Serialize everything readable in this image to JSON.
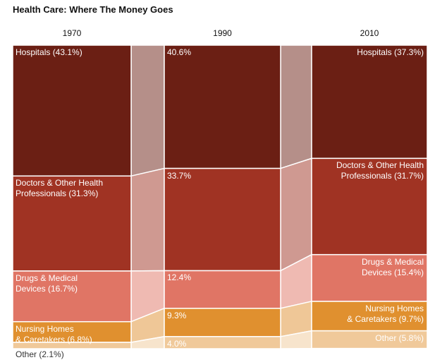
{
  "chart_data": {
    "type": "stacked_bar",
    "title": "Health Care: Where The Money Goes",
    "categories": [
      "1970",
      "1990",
      "2010"
    ],
    "ylim": [
      0,
      100
    ],
    "series": [
      {
        "name": "Hospitals",
        "color": "#6b1f14",
        "values": [
          43.1,
          40.6,
          37.3
        ],
        "value_labels": [
          "Hospitals (43.1%)",
          "40.6%",
          "Hospitals (37.3%)"
        ]
      },
      {
        "name": "Doctors & Other Health Professionals",
        "color": "#a03323",
        "values": [
          31.3,
          33.7,
          31.7
        ],
        "value_labels": [
          "Doctors & Other Health\nProfessionals (31.3%)",
          "33.7%",
          "Doctors & Other Health\nProfessionals (31.7%)"
        ]
      },
      {
        "name": "Drugs & Medical Devices",
        "color": "#e07565",
        "values": [
          16.7,
          12.4,
          15.4
        ],
        "value_labels": [
          "Drugs & Medical\nDevices (16.7%)",
          "12.4%",
          "Drugs & Medical\nDevices (15.4%)"
        ]
      },
      {
        "name": "Nursing Homes & Caretakers",
        "color": "#e0902f",
        "values": [
          6.8,
          9.3,
          9.7
        ],
        "value_labels": [
          "Nursing Homes\n& Caretakers (6.8%)",
          "9.3%",
          "Nursing Homes\n& Caretakers (9.7%)"
        ]
      },
      {
        "name": "Other",
        "color": "#f0c99a",
        "values": [
          2.1,
          4.0,
          5.8
        ],
        "value_labels": [
          "Other (2.1%)",
          "4.0%",
          "Other (5.8%)"
        ]
      }
    ]
  }
}
